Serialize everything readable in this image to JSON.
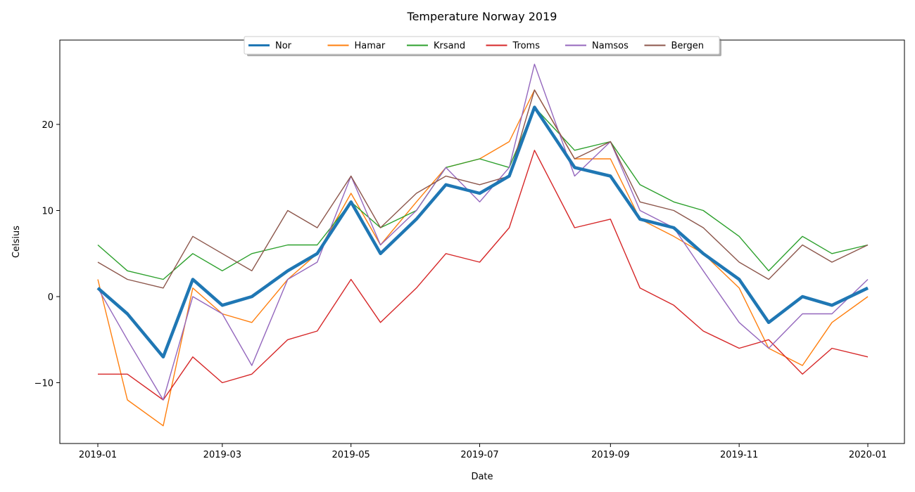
{
  "chart_data": {
    "type": "line",
    "title": "Temperature Norway 2019",
    "xlabel": "Date",
    "ylabel": "Celsius",
    "xlim": [
      "2019-01-01",
      "2020-01-01"
    ],
    "ylim": [
      -17,
      30
    ],
    "x_ticks": [
      "2019-01",
      "2019-03",
      "2019-05",
      "2019-07",
      "2019-09",
      "2019-11",
      "2020-01"
    ],
    "y_ticks": [
      -10,
      0,
      10,
      20
    ],
    "grid": false,
    "legend_position": "upper center",
    "legend": [
      " Nor",
      " Hamar",
      " Krsand",
      " Troms",
      " Namsos",
      " Bergen"
    ],
    "colors": [
      "#1f77b4",
      "#ff7f0e",
      "#2ca02c",
      "#d62728",
      "#9467bd",
      "#8c564b"
    ],
    "series": [
      {
        "name": " Nor",
        "x": [
          "2019-01-01",
          "2019-01-15",
          "2019-02-01",
          "2019-02-15",
          "2019-03-01",
          "2019-03-15",
          "2019-04-01",
          "2019-04-15",
          "2019-05-01",
          "2019-05-15",
          "2019-06-01",
          "2019-06-15",
          "2019-07-01",
          "2019-07-15",
          "2019-07-27",
          "2019-08-15",
          "2019-09-01",
          "2019-09-15",
          "2019-10-01",
          "2019-10-15",
          "2019-11-01",
          "2019-11-15",
          "2019-12-01",
          "2019-12-15",
          "2020-01-01"
        ],
        "values": [
          1,
          -2,
          -7,
          2,
          -1,
          0,
          3,
          5,
          11,
          5,
          9,
          13,
          12,
          14,
          22,
          15,
          14,
          9,
          8,
          5,
          2,
          -3,
          0,
          -1,
          1
        ]
      },
      {
        "name": " Hamar",
        "x": [
          "2019-01-01",
          "2019-01-15",
          "2019-02-01",
          "2019-02-15",
          "2019-03-01",
          "2019-03-15",
          "2019-04-01",
          "2019-04-15",
          "2019-05-01",
          "2019-05-15",
          "2019-06-01",
          "2019-06-15",
          "2019-07-01",
          "2019-07-15",
          "2019-07-27",
          "2019-08-15",
          "2019-09-01",
          "2019-09-15",
          "2019-10-01",
          "2019-10-15",
          "2019-11-01",
          "2019-11-15",
          "2019-12-01",
          "2019-12-15",
          "2020-01-01"
        ],
        "values": [
          2,
          -12,
          -15,
          1,
          -2,
          -3,
          2,
          5,
          12,
          6,
          11,
          15,
          16,
          18,
          24,
          16,
          16,
          9,
          7,
          5,
          1,
          -6,
          -8,
          -3,
          0
        ]
      },
      {
        "name": " Krsand",
        "x": [
          "2019-01-01",
          "2019-01-15",
          "2019-02-01",
          "2019-02-15",
          "2019-03-01",
          "2019-03-15",
          "2019-04-01",
          "2019-04-15",
          "2019-05-01",
          "2019-05-15",
          "2019-06-01",
          "2019-06-15",
          "2019-07-01",
          "2019-07-15",
          "2019-07-27",
          "2019-08-15",
          "2019-09-01",
          "2019-09-15",
          "2019-10-01",
          "2019-10-15",
          "2019-11-01",
          "2019-11-15",
          "2019-12-01",
          "2019-12-15",
          "2020-01-01"
        ],
        "values": [
          6,
          3,
          2,
          5,
          3,
          5,
          6,
          6,
          11,
          8,
          10,
          15,
          16,
          15,
          22,
          17,
          18,
          13,
          11,
          10,
          7,
          3,
          7,
          5,
          6
        ]
      },
      {
        "name": " Troms",
        "x": [
          "2019-01-01",
          "2019-01-15",
          "2019-02-01",
          "2019-02-15",
          "2019-03-01",
          "2019-03-15",
          "2019-04-01",
          "2019-04-15",
          "2019-05-01",
          "2019-05-15",
          "2019-06-01",
          "2019-06-15",
          "2019-07-01",
          "2019-07-15",
          "2019-07-27",
          "2019-08-15",
          "2019-09-01",
          "2019-09-15",
          "2019-10-01",
          "2019-10-15",
          "2019-11-01",
          "2019-11-15",
          "2019-12-01",
          "2019-12-15",
          "2020-01-01"
        ],
        "values": [
          -9,
          -9,
          -12,
          -7,
          -10,
          -9,
          -5,
          -4,
          2,
          -3,
          1,
          5,
          4,
          8,
          17,
          8,
          9,
          1,
          -1,
          -4,
          -6,
          -5,
          -9,
          -6,
          -7
        ]
      },
      {
        "name": " Namsos",
        "x": [
          "2019-01-01",
          "2019-01-15",
          "2019-02-01",
          "2019-02-15",
          "2019-03-01",
          "2019-03-15",
          "2019-04-01",
          "2019-04-15",
          "2019-05-01",
          "2019-05-15",
          "2019-06-01",
          "2019-06-15",
          "2019-07-01",
          "2019-07-15",
          "2019-07-27",
          "2019-08-15",
          "2019-09-01",
          "2019-09-15",
          "2019-10-01",
          "2019-10-15",
          "2019-11-01",
          "2019-11-15",
          "2019-12-01",
          "2019-12-15",
          "2020-01-01"
        ],
        "values": [
          1,
          -5,
          -12,
          0,
          -2,
          -8,
          2,
          4,
          14,
          6,
          10,
          15,
          11,
          15,
          27,
          14,
          18,
          10,
          8,
          3,
          -3,
          -6,
          -2,
          -2,
          2
        ]
      },
      {
        "name": " Bergen",
        "x": [
          "2019-01-01",
          "2019-01-15",
          "2019-02-01",
          "2019-02-15",
          "2019-03-01",
          "2019-03-15",
          "2019-04-01",
          "2019-04-15",
          "2019-05-01",
          "2019-05-15",
          "2019-06-01",
          "2019-06-15",
          "2019-07-01",
          "2019-07-15",
          "2019-07-27",
          "2019-08-15",
          "2019-09-01",
          "2019-09-15",
          "2019-10-01",
          "2019-10-15",
          "2019-11-01",
          "2019-11-15",
          "2019-12-01",
          "2019-12-15",
          "2020-01-01"
        ],
        "values": [
          4,
          2,
          1,
          7,
          5,
          3,
          10,
          8,
          14,
          8,
          12,
          14,
          13,
          14,
          24,
          16,
          18,
          11,
          10,
          8,
          4,
          2,
          6,
          4,
          6
        ]
      }
    ]
  }
}
